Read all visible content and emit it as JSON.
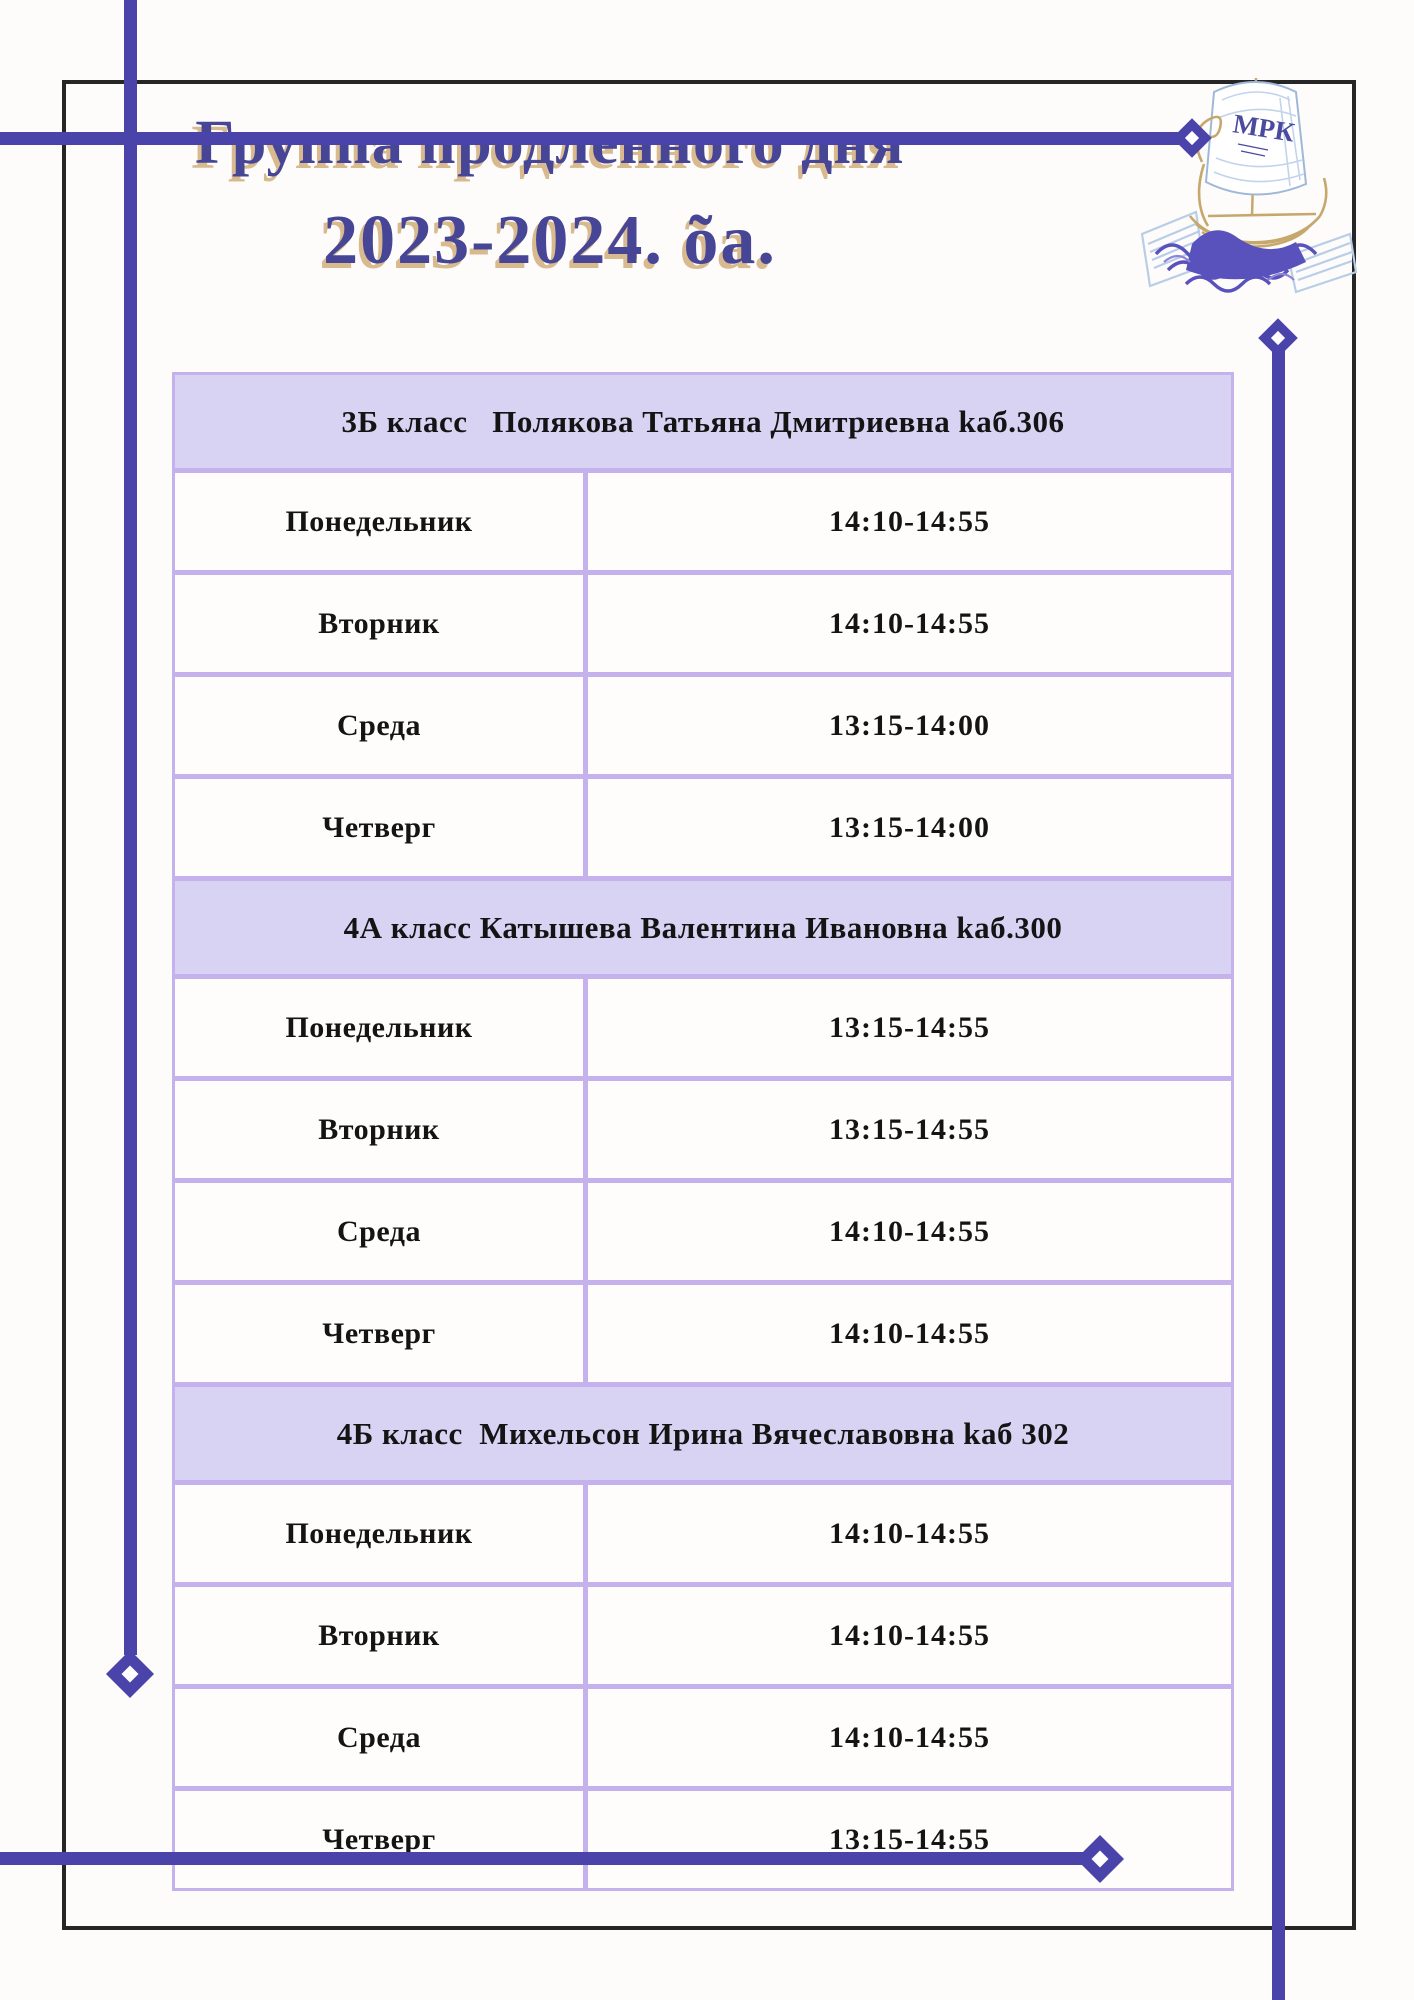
{
  "page": {
    "title_line1": "Группа продленного дня",
    "title_line2": "2023-2024. õa.",
    "logo": {
      "sail_text": "МРК"
    },
    "colors": {
      "accent_purple": "#4a44aa",
      "table_border": "#c5b2ec",
      "header_band_fill": "#d8d2f3",
      "title_color": "#474596",
      "title_shadow": "#d8ba8e",
      "frame_black": "#262626"
    }
  },
  "schedule": {
    "sections": [
      {
        "header": "3Б класс   Полякова Татьяна Дмитриевна kаб.306",
        "rows": [
          {
            "day": "Понедельник",
            "time": "14:10-14:55"
          },
          {
            "day": "Вторник",
            "time": "14:10-14:55"
          },
          {
            "day": "Среда",
            "time": "13:15-14:00"
          },
          {
            "day": "Четверг",
            "time": "13:15-14:00"
          }
        ]
      },
      {
        "header": "4А класс Катышева Валентина Ивановна kаб.300",
        "rows": [
          {
            "day": "Понедельник",
            "time": "13:15-14:55"
          },
          {
            "day": "Вторник",
            "time": "13:15-14:55"
          },
          {
            "day": "Среда",
            "time": "14:10-14:55"
          },
          {
            "day": "Четверг",
            "time": "14:10-14:55"
          }
        ]
      },
      {
        "header": "4Б класс  Михельсон Ирина Вячеславовна kаб 302",
        "rows": [
          {
            "day": "Понедельник",
            "time": "14:10-14:55"
          },
          {
            "day": "Вторник",
            "time": "14:10-14:55"
          },
          {
            "day": "Среда",
            "time": "14:10-14:55"
          },
          {
            "day": "Четверг",
            "time": "13:15-14:55"
          }
        ]
      }
    ]
  }
}
